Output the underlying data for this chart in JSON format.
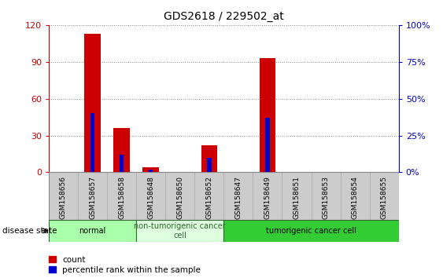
{
  "title": "GDS2618 / 229502_at",
  "samples": [
    "GSM158656",
    "GSM158657",
    "GSM158658",
    "GSM158648",
    "GSM158650",
    "GSM158652",
    "GSM158647",
    "GSM158649",
    "GSM158651",
    "GSM158653",
    "GSM158654",
    "GSM158655"
  ],
  "count": [
    0,
    113,
    36,
    4,
    0,
    22,
    0,
    93,
    0,
    0,
    0,
    0
  ],
  "percentile": [
    0,
    40,
    12,
    2,
    0,
    10,
    0,
    37,
    0,
    0,
    0,
    0
  ],
  "count_color": "#cc0000",
  "percentile_color": "#0000cc",
  "bar_width": 0.55,
  "percentile_bar_width": 0.15,
  "ylim_left": [
    0,
    120
  ],
  "ylim_right": [
    0,
    100
  ],
  "yticks_left": [
    0,
    30,
    60,
    90,
    120
  ],
  "yticks_right": [
    0,
    25,
    50,
    75,
    100
  ],
  "ytick_labels_left": [
    "0",
    "30",
    "60",
    "90",
    "120"
  ],
  "ytick_labels_right": [
    "0%",
    "25%",
    "50%",
    "75%",
    "100%"
  ],
  "groups": [
    {
      "label": "normal",
      "start": 0,
      "end": 3,
      "color": "#aaffaa",
      "text_color": "#000000"
    },
    {
      "label": "non-tumorigenic cancer\ncell",
      "start": 3,
      "end": 6,
      "color": "#ddffdd",
      "text_color": "#336633"
    },
    {
      "label": "tumorigenic cancer cell",
      "start": 6,
      "end": 12,
      "color": "#33cc33",
      "text_color": "#000000"
    }
  ],
  "disease_state_label": "disease state",
  "legend_count_label": "count",
  "legend_percentile_label": "percentile rank within the sample",
  "bg_color": "#ffffff",
  "plot_bg_color": "#ffffff",
  "tick_label_color_left": "#cc0000",
  "tick_label_color_right": "#0000cc",
  "grid_color": "#888888",
  "x_bg_color": "#cccccc",
  "spine_color": "#000000"
}
